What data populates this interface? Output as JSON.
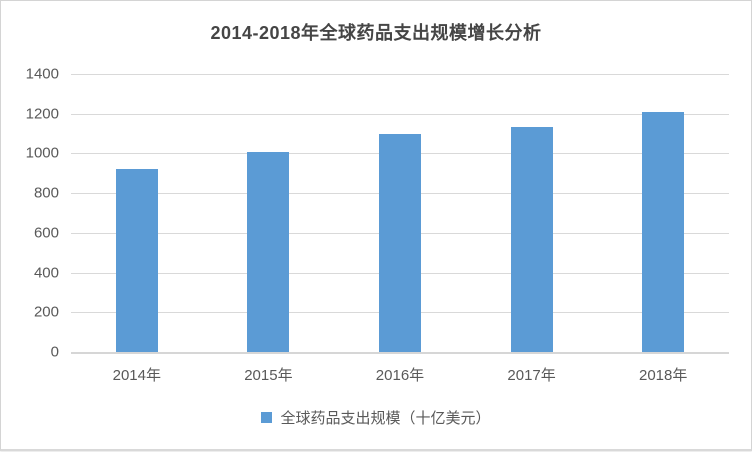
{
  "chart_data": {
    "type": "bar",
    "title": "2014-2018年全球药品支出规模增长分析",
    "categories": [
      "2014年",
      "2015年",
      "2016年",
      "2017年",
      "2018年"
    ],
    "series": [
      {
        "name": "全球药品支出规模（十亿美元）",
        "values": [
          920,
          1005,
          1100,
          1135,
          1210
        ]
      }
    ],
    "xlabel": "",
    "ylabel": "",
    "ylim": [
      0,
      1400
    ],
    "yticks": [
      0,
      200,
      400,
      600,
      800,
      1000,
      1200,
      1400
    ],
    "grid": true,
    "legend_position": "bottom",
    "colors": {
      "bar": "#5b9bd5",
      "gridline": "#d9d9d9",
      "title_text": "#454545",
      "axis_text": "#595959",
      "frame_border": "#d4d4d4"
    }
  }
}
